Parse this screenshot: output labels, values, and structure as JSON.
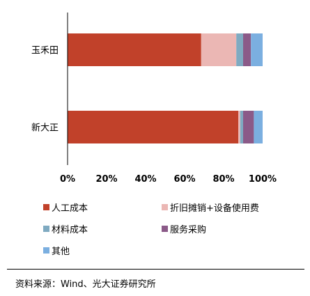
{
  "chart_data": {
    "type": "bar",
    "orientation": "horizontal",
    "stacked": true,
    "categories": [
      "玉禾田",
      "新大正"
    ],
    "series": [
      {
        "name": "人工成本",
        "color": "#C1412A",
        "values": [
          68.5,
          87.5
        ]
      },
      {
        "name": "折旧摊销+设备使用费",
        "color": "#EBB7B4",
        "values": [
          18.0,
          1.0
        ]
      },
      {
        "name": "材料成本",
        "color": "#7FAAC1",
        "values": [
          3.5,
          1.5
        ]
      },
      {
        "name": "服务采购",
        "color": "#8B5A88",
        "values": [
          4.0,
          5.5
        ]
      },
      {
        "name": "其他",
        "color": "#7BAFE0",
        "values": [
          6.0,
          4.5
        ]
      }
    ],
    "xlim": [
      0,
      100
    ],
    "xticks": [
      "0%",
      "20%",
      "40%",
      "60%",
      "80%",
      "100%"
    ],
    "grid": false,
    "legend_position": "bottom"
  },
  "source": "资料来源：Wind、光大证券研究所"
}
